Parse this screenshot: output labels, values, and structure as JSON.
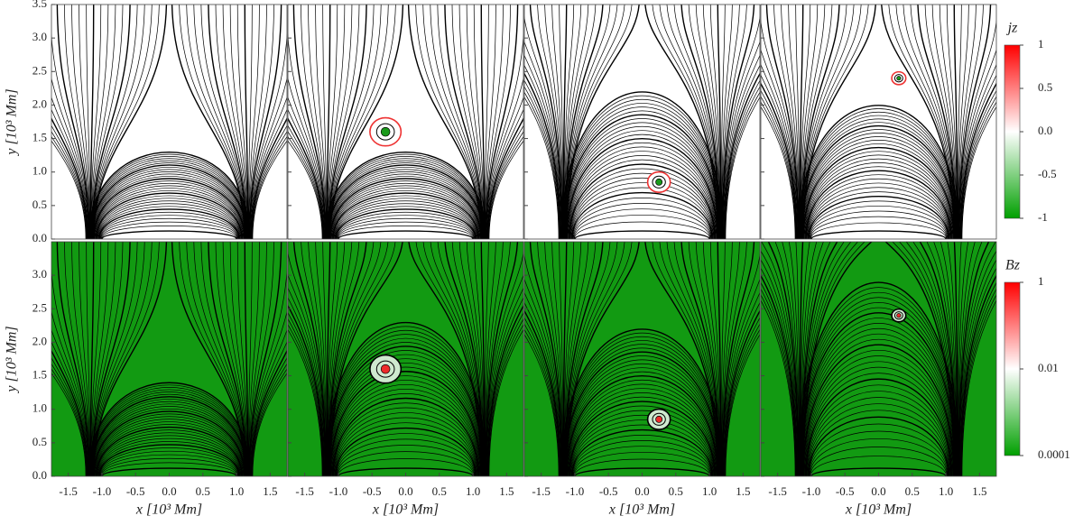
{
  "chart_data": [
    {
      "type": "field-lines",
      "ylabel": "y [10³ Mm]",
      "xlim": [
        -1.75,
        1.75
      ],
      "ylim": [
        0,
        3.5
      ],
      "yticks": [
        {
          "value": 0,
          "label": "0.0"
        },
        0.5,
        {
          "value": 1,
          "label": "1.0"
        },
        1.5,
        {
          "value": 2,
          "label": "2.0"
        },
        2.5,
        {
          "value": 3,
          "label": "3.0"
        },
        3.5
      ],
      "background": "#ffffff",
      "colorbar": {
        "label": "jz",
        "lim": [
          -1,
          1
        ],
        "ticks": [
          -1,
          -0.5,
          {
            "value": 0,
            "label": "0.0"
          },
          0.5,
          1
        ],
        "colors": [
          "#00a000",
          "#ffffff",
          "#ff0000"
        ]
      }
    },
    {
      "type": "field-lines",
      "xlabel": "x [10³ Mm]",
      "ylabel": "y [10³ Mm]",
      "xlim": [
        -1.75,
        1.75
      ],
      "ylim": [
        0,
        3.5
      ],
      "xticks": [
        -1.5,
        {
          "value": -1,
          "label": "-1.0"
        },
        -0.5,
        {
          "value": 0,
          "label": "0.0"
        },
        0.5,
        {
          "value": 1,
          "label": "1.0"
        },
        1.5
      ],
      "yticks": [
        {
          "value": 0,
          "label": "0.0"
        },
        0.5,
        {
          "value": 1,
          "label": "1.0"
        },
        1.5,
        {
          "value": 2,
          "label": "2.0"
        },
        2.5,
        {
          "value": 3,
          "label": "3.0"
        }
      ],
      "background": "#129a12",
      "colorbar": {
        "label": "Bz",
        "log": true,
        "lim": [
          0.0001,
          1
        ],
        "ticks": [
          0.0001,
          0.01,
          1
        ],
        "colors": [
          "#00a000",
          "#ffffff",
          "#ff0000"
        ]
      }
    }
  ]
}
